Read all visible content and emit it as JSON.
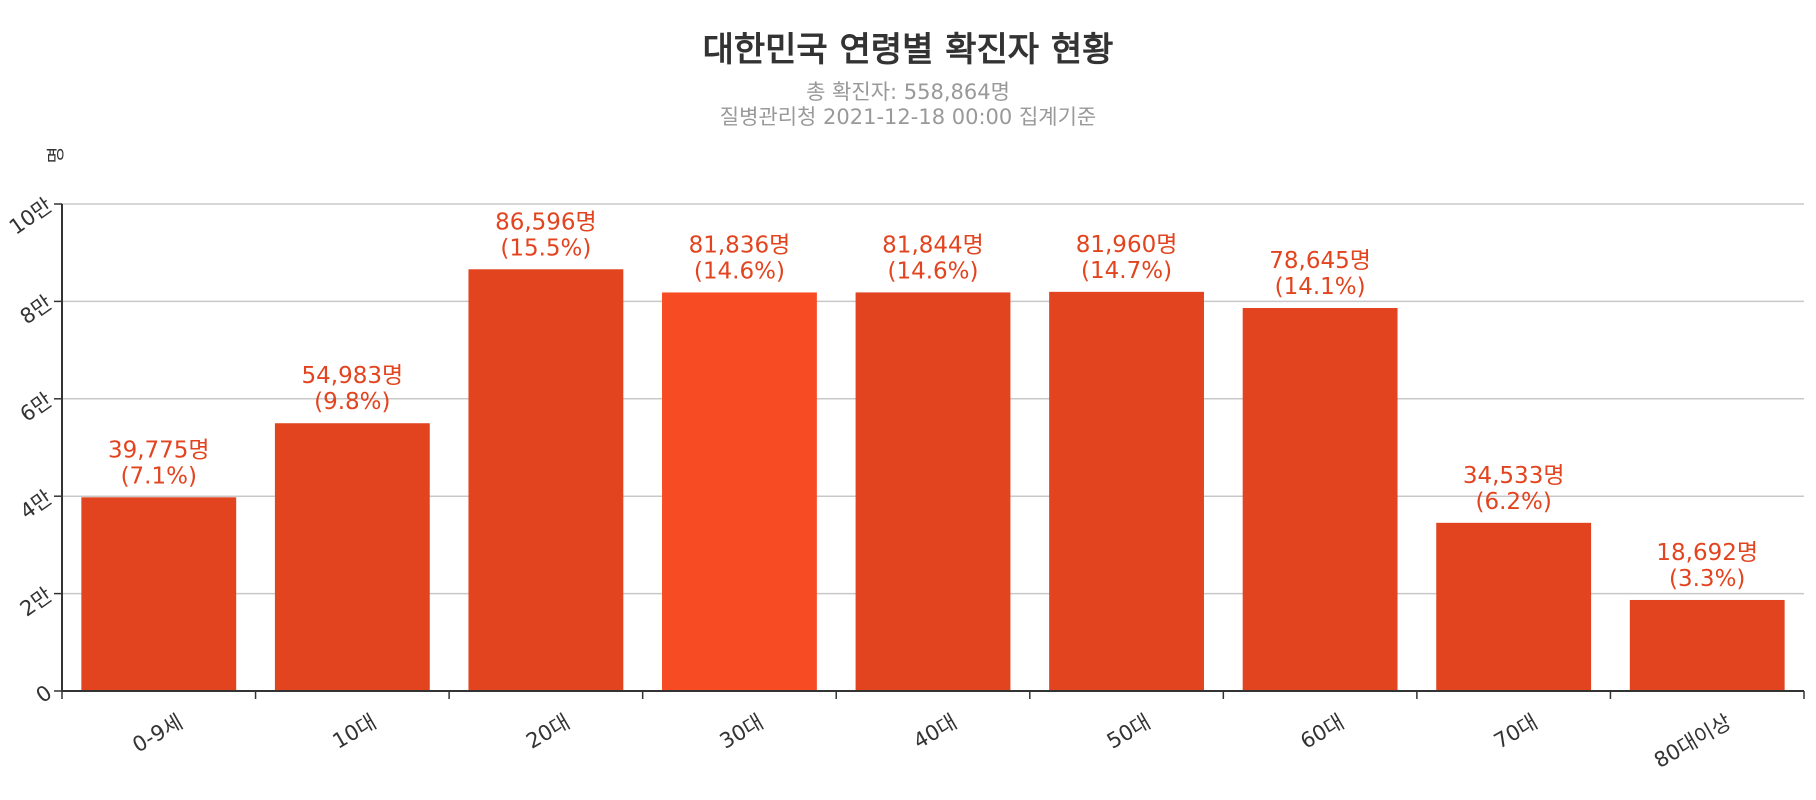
{
  "chart_data": {
    "type": "bar",
    "title": "대한민국 연령별 확진자 현황",
    "subtitle_lines": [
      "총 확진자: 558,864명",
      "질병관리청 2021-12-18 00:00 집계기준"
    ],
    "ylabel": "명",
    "categories": [
      "0-9세",
      "10대",
      "20대",
      "30대",
      "40대",
      "50대",
      "60대",
      "70대",
      "80대이상"
    ],
    "values": [
      39775,
      54983,
      86596,
      81836,
      81844,
      81960,
      78645,
      34533,
      18692
    ],
    "value_labels": [
      "39,775명",
      "54,983명",
      "86,596명",
      "81,836명",
      "81,844명",
      "81,960명",
      "78,645명",
      "34,533명",
      "18,692명"
    ],
    "percent_labels": [
      "(7.1%)",
      "(9.8%)",
      "(15.5%)",
      "(14.6%)",
      "(14.6%)",
      "(14.7%)",
      "(14.1%)",
      "(6.2%)",
      "(3.3%)"
    ],
    "ylim": [
      0,
      100000
    ],
    "y_ticks": [
      0,
      20000,
      40000,
      60000,
      80000,
      100000
    ],
    "y_tick_labels": [
      "0",
      "2만",
      "4만",
      "6만",
      "8만",
      "10만"
    ],
    "grid": true,
    "colors": {
      "bar": "#e2441f",
      "bar_highlight": "#f74b23",
      "label": "#e2441f",
      "grid": "#c8c8c8",
      "axis": "#333333"
    },
    "highlight_index": 3
  }
}
